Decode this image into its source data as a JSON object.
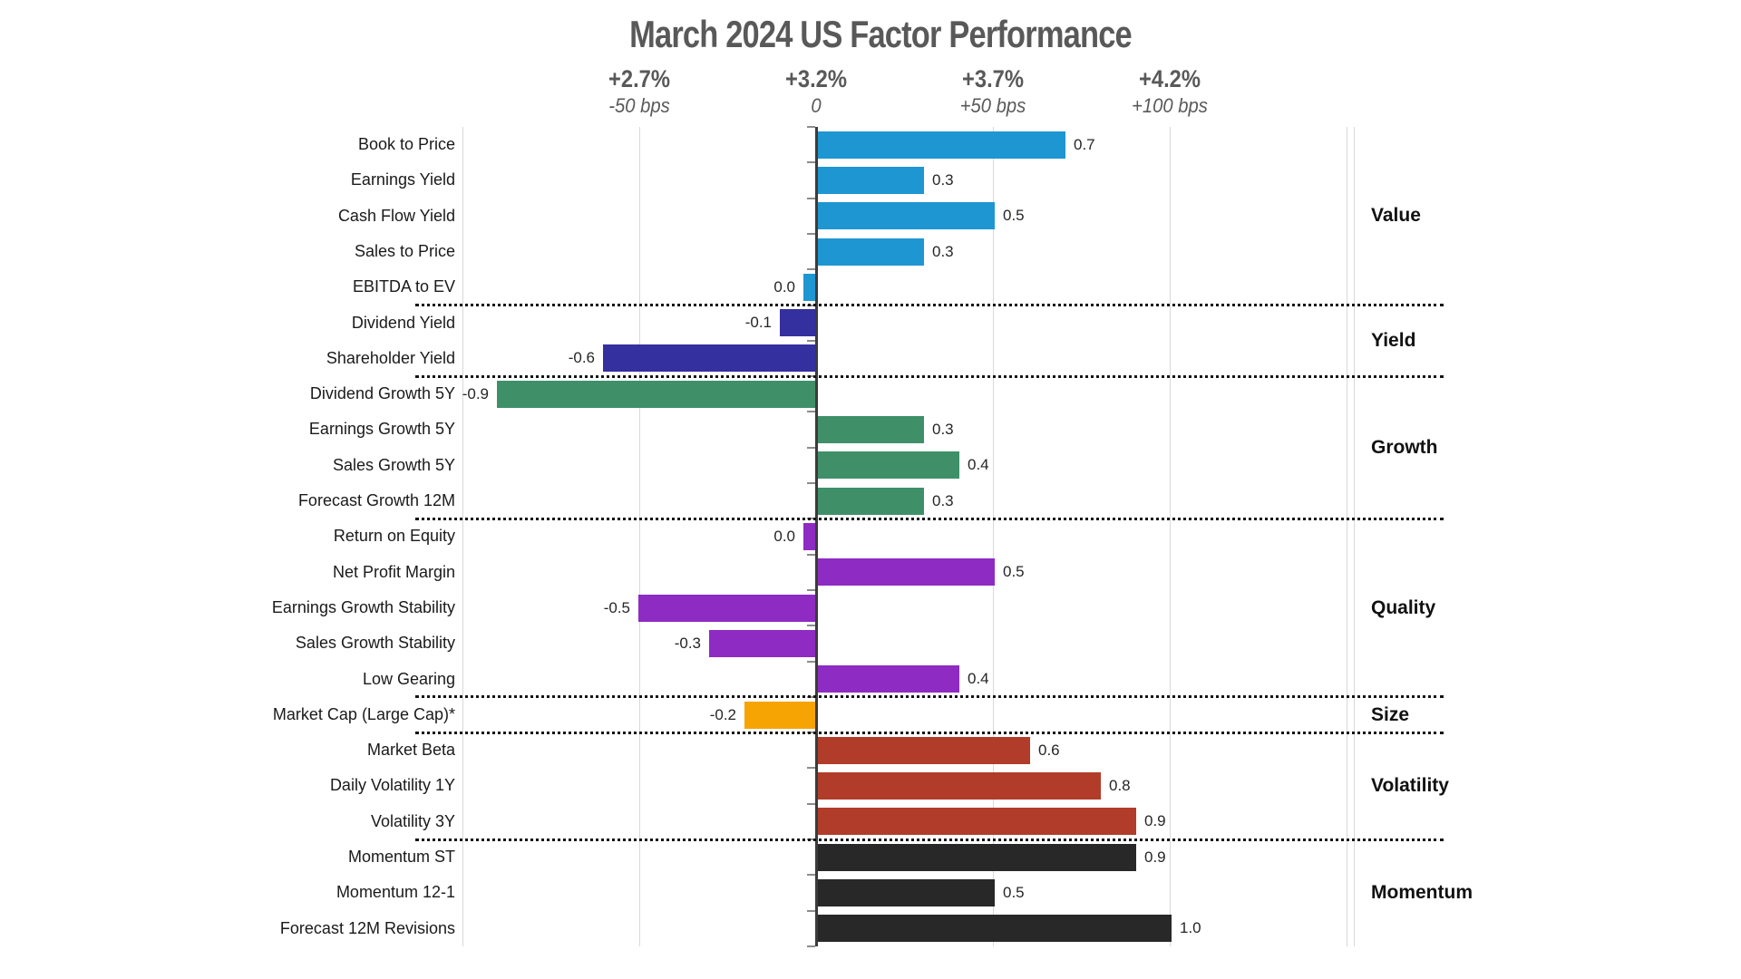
{
  "chart_data": {
    "type": "bar",
    "orientation": "horizontal",
    "title": "March 2024 US Factor Performance",
    "axis": {
      "top_row_unit": "cumulative percent",
      "bottom_row_unit": "basis points",
      "ticks": [
        {
          "pct": "+2.7%",
          "bps": "-50 bps",
          "units": -0.5
        },
        {
          "pct": "+3.2%",
          "bps": "0",
          "units": 0
        },
        {
          "pct": "+3.7%",
          "bps": "+50 bps",
          "units": 0.5
        },
        {
          "pct": "+4.2%",
          "bps": "+100 bps",
          "units": 1.0
        }
      ],
      "xlim_units": [
        -1.0,
        1.5
      ],
      "grid": true
    },
    "legend_position": "right-group-labels",
    "groups": [
      {
        "name": "Value",
        "color": "#1e96d2",
        "items": [
          {
            "label": "Book to Price",
            "value": 0.7,
            "display": "0.7"
          },
          {
            "label": "Earnings Yield",
            "value": 0.3,
            "display": "0.3"
          },
          {
            "label": "Cash Flow Yield",
            "value": 0.5,
            "display": "0.5"
          },
          {
            "label": "Sales to Price",
            "value": 0.3,
            "display": "0.3"
          },
          {
            "label": "EBITDA to EV",
            "value": 0.0,
            "display": "0.0",
            "bar_side": "left"
          }
        ]
      },
      {
        "name": "Yield",
        "color": "#34309f",
        "items": [
          {
            "label": "Dividend Yield",
            "value": -0.1,
            "display": "-0.1"
          },
          {
            "label": "Shareholder Yield",
            "value": -0.6,
            "display": "-0.6"
          }
        ]
      },
      {
        "name": "Growth",
        "color": "#3f9069",
        "items": [
          {
            "label": "Dividend Growth 5Y",
            "value": -0.9,
            "display": "-0.9"
          },
          {
            "label": "Earnings Growth 5Y",
            "value": 0.3,
            "display": "0.3"
          },
          {
            "label": "Sales Growth 5Y",
            "value": 0.4,
            "display": "0.4"
          },
          {
            "label": "Forecast Growth 12M",
            "value": 0.3,
            "display": "0.3"
          }
        ]
      },
      {
        "name": "Quality",
        "color": "#8e2bc2",
        "items": [
          {
            "label": "Return on Equity",
            "value": 0.0,
            "display": "0.0",
            "bar_side": "left"
          },
          {
            "label": "Net Profit Margin",
            "value": 0.5,
            "display": "0.5"
          },
          {
            "label": "Earnings Growth Stability",
            "value": -0.5,
            "display": "-0.5"
          },
          {
            "label": "Sales Growth Stability",
            "value": -0.3,
            "display": "-0.3"
          },
          {
            "label": "Low Gearing",
            "value": 0.4,
            "display": "0.4"
          }
        ]
      },
      {
        "name": "Size",
        "color": "#f6a404",
        "items": [
          {
            "label": "Market Cap (Large Cap)*",
            "value": -0.2,
            "display": "-0.2"
          }
        ]
      },
      {
        "name": "Volatility",
        "color": "#b23c2a",
        "items": [
          {
            "label": "Market Beta",
            "value": 0.6,
            "display": "0.6"
          },
          {
            "label": "Daily Volatility 1Y",
            "value": 0.8,
            "display": "0.8"
          },
          {
            "label": "Volatility 3Y",
            "value": 0.9,
            "display": "0.9"
          }
        ]
      },
      {
        "name": "Momentum",
        "color": "#282828",
        "items": [
          {
            "label": "Momentum ST",
            "value": 0.9,
            "display": "0.9"
          },
          {
            "label": "Momentum 12-1",
            "value": 0.5,
            "display": "0.5"
          },
          {
            "label": "Forecast 12M Revisions",
            "value": 1.0,
            "display": "1.0"
          }
        ]
      }
    ]
  }
}
